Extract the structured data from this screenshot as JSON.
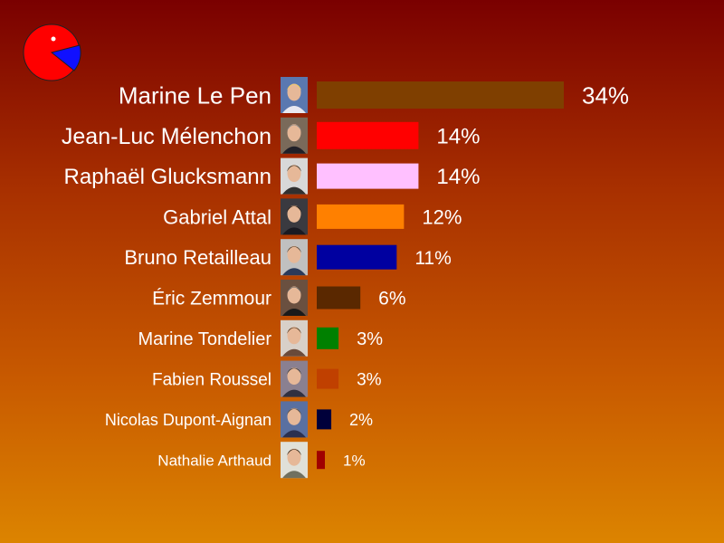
{
  "logo": {
    "icon": "pie-chart-logo-icon",
    "colors": [
      "#ff0000",
      "#1010ff"
    ]
  },
  "chart_data": {
    "type": "bar",
    "orientation": "horizontal",
    "title": "",
    "xlabel": "",
    "ylabel": "",
    "xlim": [
      0,
      34
    ],
    "grid": false,
    "legend": "none",
    "value_suffix": "%",
    "categories": [
      "Marine Le Pen",
      "Jean-Luc Mélenchon",
      "Raphaël Glucksmann",
      "Gabriel Attal",
      "Bruno Retailleau",
      "Éric Zemmour",
      "Marine Tondelier",
      "Fabien Roussel",
      "Nicolas Dupont-Aignan",
      "Nathalie Arthaud"
    ],
    "values": [
      34,
      14,
      14,
      12,
      11,
      6,
      3,
      3,
      2,
      1
    ],
    "value_labels": [
      "34%",
      "14%",
      "14%",
      "12%",
      "11%",
      "6%",
      "3%",
      "3%",
      "2%",
      "1%"
    ],
    "colors": [
      "#7f3f00",
      "#ff0000",
      "#ffc0ff",
      "#ff8000",
      "#0000a0",
      "#5a2800",
      "#008000",
      "#c04000",
      "#00003a",
      "#a00000"
    ],
    "portraits": [
      "portrait-marine-le-pen",
      "portrait-jean-luc-melenchon",
      "portrait-raphael-glucksmann",
      "portrait-gabriel-attal",
      "portrait-bruno-retailleau",
      "portrait-eric-zemmour",
      "portrait-marine-tondelier",
      "portrait-fabien-roussel",
      "portrait-nicolas-dupont-aignan",
      "portrait-nathalie-arthaud"
    ]
  }
}
